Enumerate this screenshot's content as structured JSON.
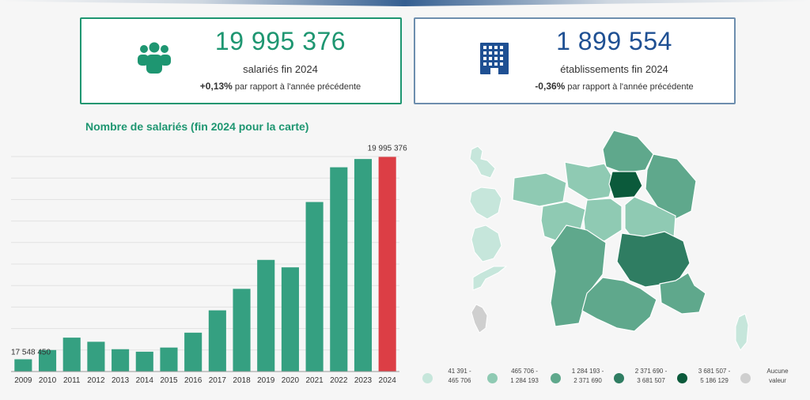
{
  "cards": {
    "employees": {
      "value": "19 995 376",
      "label": "salariés fin 2024",
      "change": "+0,13%",
      "change_text": "par rapport à l'année précédente",
      "icon": "people-group-icon",
      "color": "#1e9671"
    },
    "establishments": {
      "value": "1 899 554",
      "label": "établissements fin 2024",
      "change": "-0,36%",
      "change_text": "par rapport à l'année précédente",
      "icon": "building-icon",
      "color": "#1f5093"
    }
  },
  "chart_title": "Nombre de salariés (fin 2024 pour la carte)",
  "chart_data": {
    "type": "bar",
    "categories": [
      "2009",
      "2010",
      "2011",
      "2012",
      "2013",
      "2014",
      "2015",
      "2016",
      "2017",
      "2018",
      "2019",
      "2020",
      "2021",
      "2022",
      "2023",
      "2024"
    ],
    "values": [
      17548450,
      17660000,
      17810000,
      17760000,
      17670000,
      17640000,
      17690000,
      17870000,
      18140000,
      18400000,
      18750000,
      18660000,
      19450000,
      19870000,
      19970000,
      19995376
    ],
    "data_labels": {
      "first": "17 548 450",
      "last": "19 995 376"
    },
    "ylim": [
      17400000,
      20000000
    ],
    "bar_color": "#35a081",
    "highlight_color": "#dc3e45",
    "grid": true
  },
  "map_legend": [
    {
      "line1": "41 391 -",
      "line2": "465 706",
      "color": "#c6e6db"
    },
    {
      "line1": "465 706 -",
      "line2": "1 284 193",
      "color": "#8fcab3"
    },
    {
      "line1": "1 284 193 -",
      "line2": "2 371 690",
      "color": "#5fa88c"
    },
    {
      "line1": "2 371 690 -",
      "line2": "3 681 507",
      "color": "#2f7d62"
    },
    {
      "line1": "3 681 507 -",
      "line2": "5 186 129",
      "color": "#0b5a3b"
    },
    {
      "line1": "Aucune",
      "line2": "valeur",
      "color": "#cfcfcf"
    }
  ]
}
